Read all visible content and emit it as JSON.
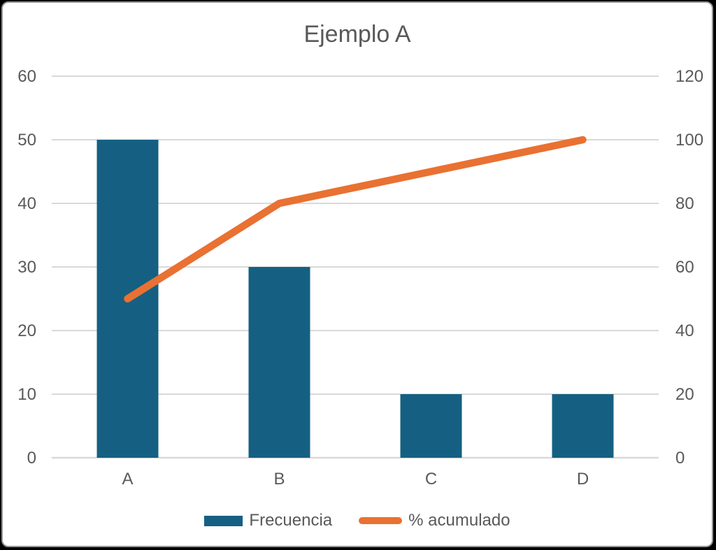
{
  "window": {
    "background": "#000000",
    "card_background": "#FFFFFF",
    "card_border_color": "#969696"
  },
  "chart_data": {
    "type": "bar",
    "subtype": "pareto-combo-bar-line",
    "title": "Ejemplo A",
    "categories": [
      "A",
      "B",
      "C",
      "D"
    ],
    "series": [
      {
        "name": "Frecuencia",
        "chart_type": "bar",
        "axis": "left",
        "color": "#156082",
        "values": [
          50,
          30,
          10,
          10
        ]
      },
      {
        "name": "% acumulado",
        "chart_type": "line",
        "axis": "right",
        "color": "#E97132",
        "values": [
          50,
          80,
          90,
          100
        ]
      }
    ],
    "left_axis": {
      "min": 0,
      "max": 60,
      "step": 10,
      "ticks": [
        0,
        10,
        20,
        30,
        40,
        50,
        60
      ]
    },
    "right_axis": {
      "min": 0,
      "max": 120,
      "step": 20,
      "ticks": [
        0,
        20,
        40,
        60,
        80,
        100,
        120
      ]
    },
    "grid": true,
    "legend_position": "bottom",
    "styles": {
      "text_color": "#595959",
      "grid_color": "#D9D9D9",
      "bar_color": "#156082",
      "line_color": "#E97132"
    }
  }
}
